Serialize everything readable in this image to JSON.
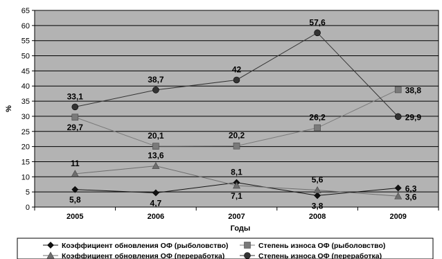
{
  "chart_data": {
    "type": "line",
    "categories": [
      "2005",
      "2006",
      "2007",
      "2008",
      "2009"
    ],
    "xlabel": "Годы",
    "ylabel": "%",
    "ylim": [
      0,
      65
    ],
    "yticks": [
      "0",
      "5",
      "10",
      "15",
      "20",
      "25",
      "30",
      "35",
      "40",
      "45",
      "50",
      "55",
      "60",
      "65"
    ],
    "grid": true,
    "legend_position": "bottom",
    "series": [
      {
        "name": "Коэффициент обновления ОФ (рыболовство)",
        "values": [
          5.8,
          4.7,
          8.1,
          3.8,
          6.3
        ],
        "labels": [
          "5,8",
          "4,7",
          "8,1",
          "3,8",
          "6,3"
        ],
        "marker": "diamond",
        "color": "#111111"
      },
      {
        "name": "Степень износа ОФ (рыболовство)",
        "values": [
          29.7,
          20.1,
          20.2,
          26.2,
          38.8
        ],
        "labels": [
          "29,7",
          "20,1",
          "20,2",
          "26,2",
          "38,8"
        ],
        "marker": "square",
        "color": "#7a7a7a"
      },
      {
        "name": "Коэффициент обновления ОФ (переработка)",
        "values": [
          11,
          13.6,
          7.1,
          5.6,
          3.6
        ],
        "labels": [
          "11",
          "13,6",
          "7,1",
          "5,6",
          "3,6"
        ],
        "marker": "triangle",
        "color": "#6e6e6e"
      },
      {
        "name": "Степень износа ОФ (переработка)",
        "values": [
          33.1,
          38.7,
          42,
          57.6,
          29.9
        ],
        "labels": [
          "33,1",
          "38,7",
          "42",
          "57,6",
          "29,9"
        ],
        "marker": "circle",
        "color": "#333333"
      }
    ]
  },
  "colors": {
    "plot_background": "#b3b3b3",
    "gridline": "#000000"
  }
}
